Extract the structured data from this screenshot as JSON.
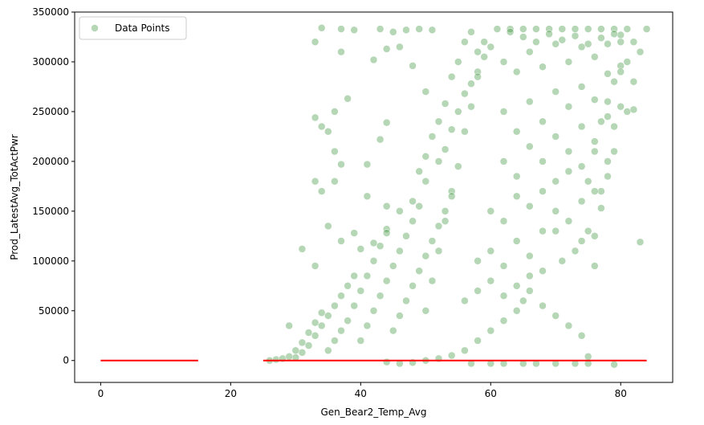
{
  "chart_data": {
    "type": "scatter",
    "xlabel": "Gen_Bear2_Temp_Avg",
    "ylabel": "Prod_LatestAvg_TotActPwr",
    "xlim": [
      -4,
      88
    ],
    "ylim": [
      -22000,
      350000
    ],
    "x_ticks": [
      0,
      20,
      40,
      60,
      80
    ],
    "y_ticks": [
      0,
      50000,
      100000,
      150000,
      200000,
      250000,
      300000,
      350000
    ],
    "grid": false,
    "legend_position": "top-left",
    "series": [
      {
        "name": "Data Points",
        "kind": "scatter",
        "color": "#2e8b2e",
        "edge_color": "#ffffff",
        "opacity": 0.35,
        "x_range": [
          25,
          84
        ],
        "y_range": [
          -4000,
          333000
        ],
        "points": [
          [
            33,
            320000
          ],
          [
            34,
            334000
          ],
          [
            37,
            333000
          ],
          [
            39,
            332000
          ],
          [
            37,
            310000
          ],
          [
            43,
            333000
          ],
          [
            45,
            330000
          ],
          [
            47,
            332000
          ],
          [
            49,
            333000
          ],
          [
            51,
            332000
          ],
          [
            42,
            302000
          ],
          [
            44,
            313000
          ],
          [
            46,
            315000
          ],
          [
            48,
            296000
          ],
          [
            50,
            270000
          ],
          [
            38,
            263000
          ],
          [
            33,
            244000
          ],
          [
            34,
            235000
          ],
          [
            35,
            230000
          ],
          [
            36,
            250000
          ],
          [
            36,
            210000
          ],
          [
            37,
            197000
          ],
          [
            33,
            180000
          ],
          [
            34,
            170000
          ],
          [
            36,
            180000
          ],
          [
            44,
            239000
          ],
          [
            43,
            222000
          ],
          [
            41,
            197000
          ],
          [
            41,
            165000
          ],
          [
            44,
            155000
          ],
          [
            31,
            112000
          ],
          [
            33,
            95000
          ],
          [
            35,
            135000
          ],
          [
            37,
            120000
          ],
          [
            39,
            128000
          ],
          [
            40,
            112000
          ],
          [
            42,
            118000
          ],
          [
            44,
            132000
          ],
          [
            46,
            150000
          ],
          [
            48,
            160000
          ],
          [
            50,
            180000
          ],
          [
            52,
            200000
          ],
          [
            53,
            212000
          ],
          [
            54,
            232000
          ],
          [
            55,
            250000
          ],
          [
            56,
            268000
          ],
          [
            57,
            278000
          ],
          [
            58,
            290000
          ],
          [
            59,
            305000
          ],
          [
            60,
            315000
          ],
          [
            83,
            119000
          ],
          [
            82,
            280000
          ],
          [
            81,
            300000
          ],
          [
            80,
            320000
          ],
          [
            79,
            280000
          ],
          [
            78,
            260000
          ],
          [
            77,
            240000
          ],
          [
            76,
            210000
          ],
          [
            75,
            180000
          ],
          [
            74,
            160000
          ],
          [
            79,
            210000
          ],
          [
            77,
            170000
          ],
          [
            75,
            130000
          ],
          [
            73,
            110000
          ],
          [
            71,
            100000
          ],
          [
            70,
            130000
          ],
          [
            68,
            90000
          ],
          [
            66,
            70000
          ],
          [
            65,
            60000
          ],
          [
            64,
            50000
          ],
          [
            62,
            40000
          ],
          [
            60,
            30000
          ],
          [
            58,
            20000
          ],
          [
            56,
            10000
          ],
          [
            54,
            5000
          ],
          [
            52,
            2000
          ],
          [
            50,
            0
          ],
          [
            48,
            -2000
          ],
          [
            46,
            -3000
          ],
          [
            44,
            -1500
          ],
          [
            75,
            4000
          ],
          [
            75,
            -3000
          ],
          [
            79,
            -4000
          ],
          [
            73,
            -3000
          ],
          [
            70,
            -3000
          ],
          [
            67,
            -3000
          ],
          [
            65,
            -3000
          ],
          [
            62,
            -3000
          ],
          [
            60,
            -3000
          ],
          [
            57,
            -3000
          ],
          [
            50,
            50000
          ],
          [
            51,
            80000
          ],
          [
            52,
            110000
          ],
          [
            53,
            140000
          ],
          [
            54,
            170000
          ],
          [
            55,
            195000
          ],
          [
            56,
            230000
          ],
          [
            57,
            255000
          ],
          [
            58,
            285000
          ],
          [
            59,
            320000
          ],
          [
            61,
            333000
          ],
          [
            63,
            333000
          ],
          [
            65,
            333000
          ],
          [
            67,
            333000
          ],
          [
            69,
            333000
          ],
          [
            71,
            333000
          ],
          [
            73,
            333000
          ],
          [
            75,
            333000
          ],
          [
            77,
            333000
          ],
          [
            79,
            333000
          ],
          [
            62,
            300000
          ],
          [
            64,
            290000
          ],
          [
            66,
            310000
          ],
          [
            68,
            295000
          ],
          [
            70,
            318000
          ],
          [
            72,
            300000
          ],
          [
            74,
            315000
          ],
          [
            76,
            305000
          ],
          [
            78,
            318000
          ],
          [
            80,
            327000
          ],
          [
            62,
            250000
          ],
          [
            64,
            230000
          ],
          [
            66,
            260000
          ],
          [
            68,
            240000
          ],
          [
            70,
            270000
          ],
          [
            72,
            255000
          ],
          [
            74,
            275000
          ],
          [
            76,
            262000
          ],
          [
            78,
            288000
          ],
          [
            80,
            296000
          ],
          [
            62,
            200000
          ],
          [
            64,
            185000
          ],
          [
            66,
            215000
          ],
          [
            68,
            200000
          ],
          [
            70,
            225000
          ],
          [
            72,
            210000
          ],
          [
            74,
            235000
          ],
          [
            76,
            220000
          ],
          [
            78,
            245000
          ],
          [
            80,
            255000
          ],
          [
            60,
            150000
          ],
          [
            62,
            140000
          ],
          [
            64,
            165000
          ],
          [
            66,
            155000
          ],
          [
            68,
            170000
          ],
          [
            70,
            180000
          ],
          [
            72,
            190000
          ],
          [
            74,
            195000
          ],
          [
            76,
            170000
          ],
          [
            78,
            200000
          ],
          [
            58,
            100000
          ],
          [
            60,
            110000
          ],
          [
            62,
            95000
          ],
          [
            64,
            120000
          ],
          [
            66,
            105000
          ],
          [
            68,
            130000
          ],
          [
            70,
            150000
          ],
          [
            72,
            140000
          ],
          [
            74,
            120000
          ],
          [
            76,
            95000
          ],
          [
            56,
            60000
          ],
          [
            58,
            70000
          ],
          [
            60,
            80000
          ],
          [
            62,
            65000
          ],
          [
            64,
            75000
          ],
          [
            66,
            85000
          ],
          [
            68,
            55000
          ],
          [
            70,
            45000
          ],
          [
            72,
            35000
          ],
          [
            74,
            25000
          ],
          [
            45,
            30000
          ],
          [
            46,
            45000
          ],
          [
            47,
            60000
          ],
          [
            48,
            75000
          ],
          [
            49,
            90000
          ],
          [
            50,
            105000
          ],
          [
            51,
            120000
          ],
          [
            52,
            135000
          ],
          [
            53,
            150000
          ],
          [
            54,
            165000
          ],
          [
            40,
            20000
          ],
          [
            41,
            35000
          ],
          [
            42,
            50000
          ],
          [
            43,
            65000
          ],
          [
            44,
            80000
          ],
          [
            45,
            95000
          ],
          [
            46,
            110000
          ],
          [
            47,
            125000
          ],
          [
            48,
            140000
          ],
          [
            49,
            155000
          ],
          [
            35,
            10000
          ],
          [
            36,
            20000
          ],
          [
            37,
            30000
          ],
          [
            38,
            40000
          ],
          [
            39,
            55000
          ],
          [
            40,
            70000
          ],
          [
            41,
            85000
          ],
          [
            42,
            100000
          ],
          [
            43,
            115000
          ],
          [
            44,
            128000
          ],
          [
            30,
            3000
          ],
          [
            31,
            8000
          ],
          [
            32,
            15000
          ],
          [
            33,
            25000
          ],
          [
            34,
            35000
          ],
          [
            35,
            45000
          ],
          [
            36,
            55000
          ],
          [
            37,
            65000
          ],
          [
            38,
            75000
          ],
          [
            39,
            85000
          ],
          [
            26,
            0
          ],
          [
            27,
            1000
          ],
          [
            28,
            2000
          ],
          [
            29,
            4000
          ],
          [
            30,
            10000
          ],
          [
            31,
            18000
          ],
          [
            32,
            28000
          ],
          [
            33,
            38000
          ],
          [
            34,
            48000
          ],
          [
            29,
            35000
          ],
          [
            55,
            300000
          ],
          [
            56,
            320000
          ],
          [
            57,
            330000
          ],
          [
            58,
            310000
          ],
          [
            54,
            285000
          ],
          [
            53,
            258000
          ],
          [
            52,
            240000
          ],
          [
            51,
            225000
          ],
          [
            50,
            205000
          ],
          [
            49,
            190000
          ],
          [
            63,
            330000
          ],
          [
            65,
            325000
          ],
          [
            67,
            320000
          ],
          [
            69,
            328000
          ],
          [
            71,
            322000
          ],
          [
            73,
            326000
          ],
          [
            75,
            318000
          ],
          [
            77,
            324000
          ],
          [
            79,
            328000
          ],
          [
            81,
            333000
          ],
          [
            82,
            320000
          ],
          [
            83,
            310000
          ],
          [
            84,
            333000
          ],
          [
            81,
            250000
          ],
          [
            82,
            252000
          ],
          [
            80,
            290000
          ],
          [
            79,
            235000
          ],
          [
            78,
            185000
          ],
          [
            77,
            153000
          ],
          [
            76,
            125000
          ]
        ]
      },
      {
        "name": "",
        "kind": "line",
        "color": "#ff0000",
        "segments": [
          [
            [
              0,
              0
            ],
            [
              15,
              0
            ]
          ],
          [
            [
              25,
              0
            ],
            [
              84,
              0
            ]
          ]
        ]
      }
    ]
  }
}
